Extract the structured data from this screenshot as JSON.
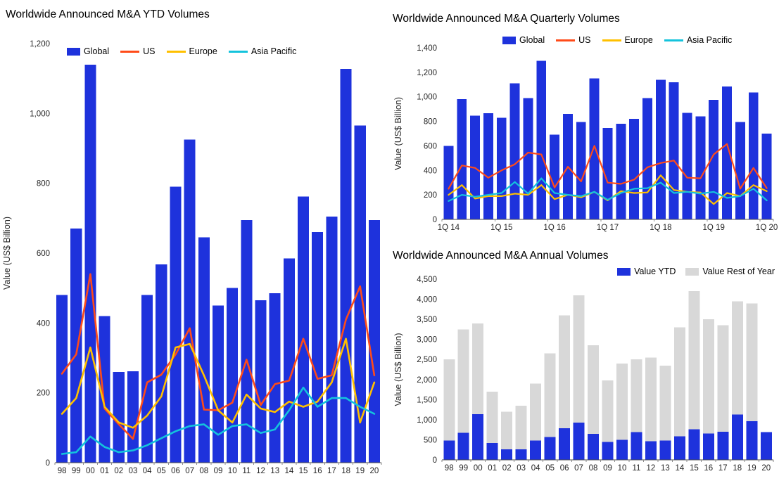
{
  "page": {
    "background": "#FFFFFF"
  },
  "colors": {
    "global_blue": "#1E32DC",
    "us_orange": "#FF4B19",
    "europe_yellow": "#FFC000",
    "asia_pacific_cyan": "#14C3DC",
    "rest_of_year_gray": "#D8D8D8"
  },
  "chart_data": [
    {
      "id": "ytd",
      "type": "bar+line",
      "title": "Worldwide Announced M&A YTD Volumes",
      "ylabel": "Value (US$ Billion)",
      "ylim": [
        0,
        1200
      ],
      "ytick": 200,
      "grid": false,
      "legend_position": "top",
      "xtick_every": 1,
      "categories": [
        "98",
        "99",
        "00",
        "01",
        "02",
        "03",
        "04",
        "05",
        "06",
        "07",
        "08",
        "09",
        "10",
        "11",
        "12",
        "13",
        "14",
        "15",
        "16",
        "17",
        "18",
        "19",
        "20"
      ],
      "bar_series": {
        "name": "Global",
        "color": "#1E32DC",
        "values": [
          480,
          670,
          1140,
          420,
          260,
          262,
          480,
          568,
          790,
          925,
          645,
          450,
          500,
          695,
          465,
          485,
          585,
          762,
          660,
          705,
          1128,
          965,
          695
        ]
      },
      "line_series": [
        {
          "name": "US",
          "color": "#FF4B19",
          "values": [
            255,
            310,
            540,
            155,
            110,
            68,
            230,
            252,
            310,
            385,
            152,
            150,
            172,
            295,
            165,
            225,
            235,
            355,
            240,
            250,
            410,
            505,
            250
          ]
        },
        {
          "name": "Europe",
          "color": "#FFC000",
          "values": [
            140,
            185,
            330,
            160,
            115,
            100,
            135,
            190,
            330,
            340,
            250,
            150,
            115,
            195,
            155,
            145,
            175,
            160,
            175,
            230,
            355,
            115,
            230
          ]
        },
        {
          "name": "Asia Pacific",
          "color": "#14C3DC",
          "values": [
            25,
            30,
            75,
            45,
            30,
            35,
            50,
            70,
            90,
            105,
            110,
            80,
            105,
            110,
            85,
            95,
            150,
            215,
            160,
            185,
            185,
            160,
            140
          ]
        }
      ]
    },
    {
      "id": "quarterly",
      "type": "bar+line",
      "title": "Worldwide Announced M&A Quarterly Volumes",
      "ylabel": "Value (US$ Billion)",
      "ylim": [
        0,
        1400
      ],
      "ytick": 200,
      "grid": false,
      "legend_position": "top",
      "xtick_every": 4,
      "categories": [
        "1Q 14",
        "2Q 14",
        "3Q 14",
        "4Q 14",
        "1Q 15",
        "2Q 15",
        "3Q 15",
        "4Q 15",
        "1Q 16",
        "2Q 16",
        "3Q 16",
        "4Q 16",
        "1Q 17",
        "2Q 17",
        "3Q 17",
        "4Q 17",
        "1Q 18",
        "2Q 18",
        "3Q 18",
        "4Q 18",
        "1Q 19",
        "2Q 19",
        "3Q 19",
        "4Q 19",
        "1Q 20"
      ],
      "bar_series": {
        "name": "Global",
        "color": "#1E32DC",
        "values": [
          600,
          980,
          845,
          865,
          830,
          1110,
          990,
          1295,
          690,
          860,
          795,
          1150,
          745,
          780,
          820,
          990,
          1140,
          1120,
          870,
          840,
          975,
          1085,
          795,
          1035,
          700
        ]
      },
      "line_series": [
        {
          "name": "US",
          "color": "#FF4B19",
          "values": [
            250,
            440,
            420,
            340,
            400,
            450,
            545,
            530,
            260,
            430,
            310,
            600,
            300,
            290,
            325,
            425,
            460,
            480,
            340,
            335,
            530,
            615,
            250,
            420,
            255
          ]
        },
        {
          "name": "Europe",
          "color": "#FFC000",
          "values": [
            200,
            280,
            170,
            190,
            190,
            210,
            200,
            280,
            165,
            200,
            180,
            225,
            155,
            230,
            215,
            220,
            360,
            240,
            225,
            220,
            125,
            215,
            190,
            280,
            230
          ]
        },
        {
          "name": "Asia Pacific",
          "color": "#14C3DC",
          "values": [
            150,
            200,
            185,
            200,
            215,
            305,
            210,
            335,
            215,
            200,
            190,
            225,
            160,
            215,
            250,
            255,
            300,
            215,
            225,
            210,
            225,
            175,
            190,
            250,
            155
          ]
        }
      ]
    },
    {
      "id": "annual",
      "type": "stacked-bar",
      "title": "Worldwide Announced M&A Annual Volumes",
      "ylabel": "Value (US$ Billion)",
      "ylim": [
        0,
        4500
      ],
      "ytick": 500,
      "grid": false,
      "legend_position": "top-right",
      "xtick_every": 1,
      "categories": [
        "98",
        "99",
        "00",
        "01",
        "02",
        "03",
        "04",
        "05",
        "06",
        "07",
        "08",
        "09",
        "10",
        "11",
        "12",
        "13",
        "14",
        "15",
        "16",
        "17",
        "18",
        "19",
        "20"
      ],
      "stack_series": [
        {
          "name": "Value YTD",
          "color": "#1E32DC",
          "values": [
            480,
            670,
            1140,
            420,
            260,
            262,
            480,
            568,
            790,
            925,
            645,
            450,
            500,
            695,
            465,
            485,
            585,
            762,
            660,
            705,
            1128,
            965,
            695
          ]
        },
        {
          "name": "Value Rest of Year",
          "color": "#D8D8D8",
          "values": [
            2020,
            2580,
            2260,
            1280,
            940,
            1088,
            1420,
            2082,
            2810,
            3175,
            2205,
            1525,
            1900,
            1805,
            2085,
            1865,
            2715,
            3438,
            2840,
            2645,
            2822,
            2935,
            0
          ]
        }
      ]
    }
  ]
}
